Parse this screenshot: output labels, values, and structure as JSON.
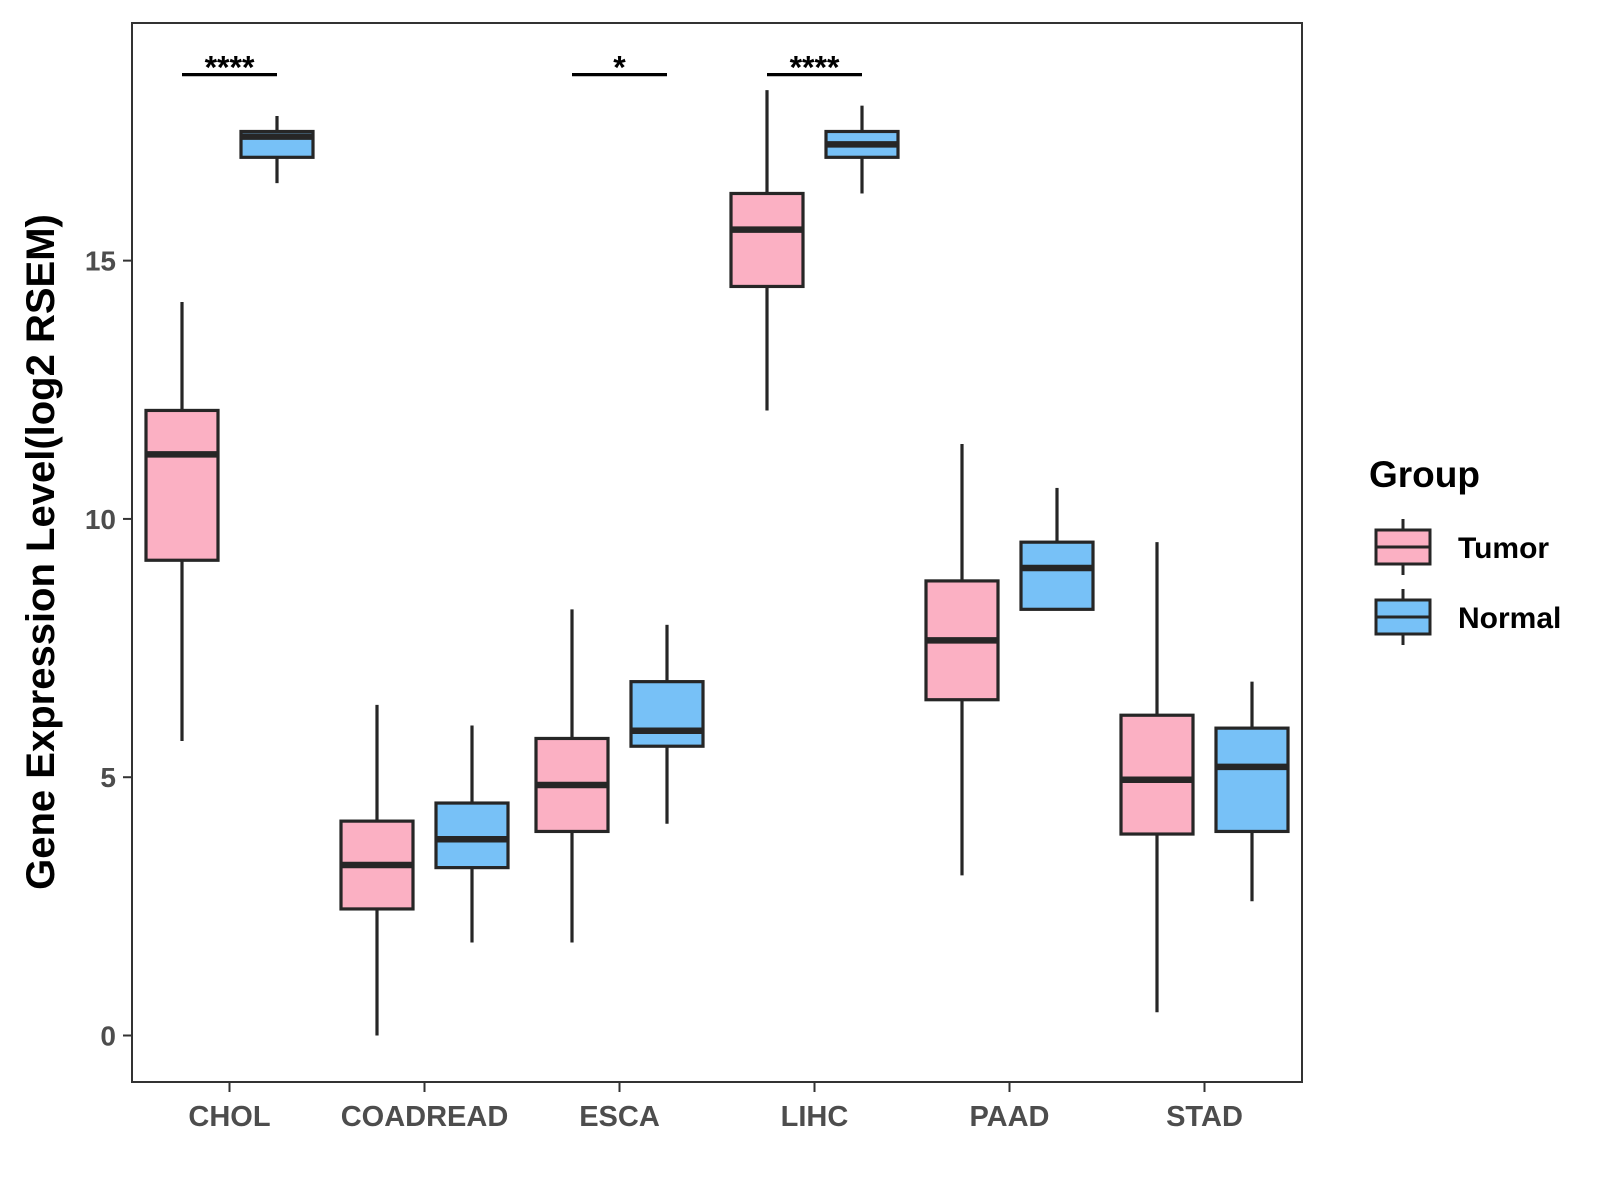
{
  "chart_data": {
    "type": "boxplot",
    "title": "",
    "xlabel": "",
    "ylabel": "Gene Expression Level(log2 RSEM)",
    "ylim": [
      -0.9,
      19.6
    ],
    "yticks": [
      0,
      5,
      10,
      15
    ],
    "grid": false,
    "categories": [
      "CHOL",
      "COADREAD",
      "ESCA",
      "LIHC",
      "PAAD",
      "STAD"
    ],
    "legend": {
      "title": "Group",
      "placement": "right",
      "items": [
        {
          "name": "Tumor",
          "color": "#FBB0C3"
        },
        {
          "name": "Normal",
          "color": "#77C1F7"
        }
      ]
    },
    "series": [
      {
        "name": "Tumor",
        "color": "#FBB0C3",
        "boxes": [
          {
            "min": 5.7,
            "q1": 9.2,
            "median": 11.25,
            "q3": 12.1,
            "max": 14.2
          },
          {
            "min": 0.0,
            "q1": 2.45,
            "median": 3.3,
            "q3": 4.15,
            "max": 6.4
          },
          {
            "min": 1.8,
            "q1": 3.95,
            "median": 4.85,
            "q3": 5.75,
            "max": 8.25
          },
          {
            "min": 12.1,
            "q1": 14.5,
            "median": 15.6,
            "q3": 16.3,
            "max": 18.3
          },
          {
            "min": 3.1,
            "q1": 6.5,
            "median": 7.65,
            "q3": 8.8,
            "max": 11.45
          },
          {
            "min": 0.45,
            "q1": 3.9,
            "median": 4.95,
            "q3": 6.2,
            "max": 9.55
          }
        ]
      },
      {
        "name": "Normal",
        "color": "#77C1F7",
        "boxes": [
          {
            "min": 16.5,
            "q1": 17.0,
            "median": 17.4,
            "q3": 17.5,
            "max": 17.8
          },
          {
            "min": 1.8,
            "q1": 3.25,
            "median": 3.8,
            "q3": 4.5,
            "max": 6.0
          },
          {
            "min": 4.1,
            "q1": 5.6,
            "median": 5.9,
            "q3": 6.85,
            "max": 7.95
          },
          {
            "min": 16.3,
            "q1": 17.0,
            "median": 17.25,
            "q3": 17.5,
            "max": 18.0
          },
          {
            "min": 8.25,
            "q1": 8.25,
            "median": 9.05,
            "q3": 9.55,
            "max": 10.6
          },
          {
            "min": 2.6,
            "q1": 3.95,
            "median": 5.2,
            "q3": 5.95,
            "max": 6.85
          }
        ]
      }
    ],
    "significance": [
      {
        "category": "CHOL",
        "label": "****",
        "y": 18.6
      },
      {
        "category": "ESCA",
        "label": "*",
        "y": 18.6
      },
      {
        "category": "LIHC",
        "label": "****",
        "y": 18.6
      }
    ]
  }
}
